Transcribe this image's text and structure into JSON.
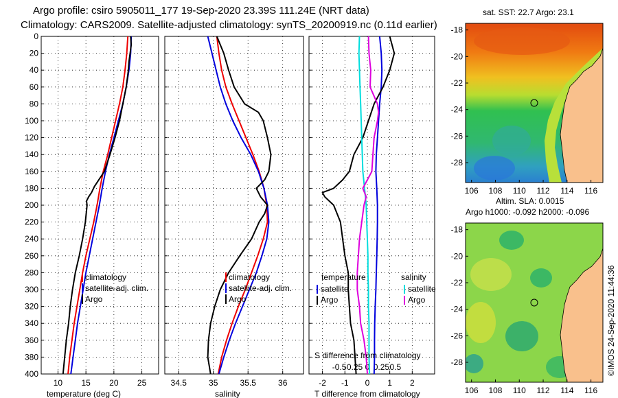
{
  "header": {
    "title_line1": "Argo profile: csiro 5905011_177 19-Sep-2020 23.39S 111.24E (NRT data)",
    "title_line2": "Climatology: CARS2009. Satellite-adjusted climatology: synTS_20200919.nc (0.11d earlier)"
  },
  "maps_text": {
    "sst_title": "sat. SST: 22.7 Argo: 23.1",
    "sla_title": "Altim. SLA: 0.0015",
    "h_title": "Argo h1000: -0.092 h2000: -0.096",
    "credit": "©IMOS 24-Sep-2020 11:44:36"
  },
  "legend": {
    "climatology": "climatology",
    "satellite_adj": "satellite-adj. clim.",
    "argo": "Argo",
    "temperature": "temperature",
    "salinity": "salinity",
    "satellite": "satellite"
  },
  "colors": {
    "climatology": "#ee0000",
    "satellite_adj": "#0000dd",
    "argo": "#000000",
    "diff_salinity": "#dd00dd",
    "diff_temperature_sat": "#00dddd",
    "land": "#f9c08c"
  },
  "chart_data": [
    {
      "type": "line",
      "title": "",
      "xlabel": "temperature (deg C)",
      "ylabel": "",
      "xlim": [
        7,
        28
      ],
      "ylim": [
        400,
        0
      ],
      "xticks": [
        10,
        15,
        20,
        25
      ],
      "yticks": [
        0,
        20,
        40,
        60,
        80,
        100,
        120,
        140,
        160,
        180,
        200,
        220,
        240,
        260,
        280,
        300,
        320,
        340,
        360,
        380,
        400
      ],
      "grid": true,
      "legend_position": "lower-right",
      "series": [
        {
          "name": "climatology",
          "depth": [
            0,
            20,
            40,
            60,
            80,
            100,
            120,
            140,
            160,
            180,
            200,
            220,
            240,
            260,
            280,
            300,
            320,
            340,
            360,
            380,
            400
          ],
          "values": [
            22.5,
            22.3,
            22.0,
            21.6,
            21.0,
            20.3,
            19.6,
            18.9,
            18.1,
            17.5,
            17.0,
            16.4,
            15.7,
            15.0,
            14.4,
            13.9,
            13.4,
            12.9,
            12.5,
            12.1,
            11.8
          ]
        },
        {
          "name": "satellite-adj. clim.",
          "depth": [
            0,
            20,
            40,
            60,
            80,
            100,
            120,
            140,
            160,
            180,
            200,
            220,
            240,
            260,
            280,
            300,
            320,
            340,
            360,
            380,
            400
          ],
          "values": [
            23.1,
            23.0,
            22.7,
            22.2,
            21.6,
            20.8,
            20.0,
            19.2,
            18.5,
            17.9,
            17.4,
            16.8,
            16.2,
            15.6,
            15.0,
            14.5,
            14.0,
            13.5,
            13.1,
            12.7,
            12.3
          ]
        },
        {
          "name": "Argo",
          "depth": [
            0,
            10,
            20,
            30,
            40,
            60,
            80,
            100,
            120,
            140,
            160,
            170,
            178,
            185,
            190,
            195,
            200,
            220,
            240,
            260,
            280,
            300,
            320,
            340,
            360,
            380,
            400
          ],
          "values": [
            23.0,
            23.1,
            22.9,
            22.7,
            22.6,
            22.2,
            21.6,
            21.0,
            20.2,
            19.3,
            18.3,
            17.3,
            16.5,
            16.0,
            15.5,
            15.1,
            15.2,
            14.9,
            14.4,
            13.8,
            13.1,
            12.6,
            12.2,
            11.9,
            11.5,
            11.2,
            10.9
          ]
        }
      ]
    },
    {
      "type": "line",
      "title": "",
      "xlabel": "salinity",
      "ylabel": "",
      "xlim": [
        34.3,
        36.3
      ],
      "ylim": [
        400,
        0
      ],
      "xticks": [
        34.5,
        35,
        35.5,
        36
      ],
      "xtick_labels": [
        "34.5",
        "35",
        "35.5",
        "36"
      ],
      "grid": true,
      "legend_position": "lower-right",
      "series": [
        {
          "name": "climatology",
          "depth": [
            0,
            20,
            40,
            60,
            80,
            100,
            120,
            140,
            160,
            180,
            200,
            220,
            240,
            260,
            280,
            300,
            320,
            340,
            360,
            380,
            400
          ],
          "values": [
            35.05,
            35.08,
            35.12,
            35.18,
            35.27,
            35.37,
            35.47,
            35.57,
            35.66,
            35.73,
            35.77,
            35.78,
            35.72,
            35.64,
            35.55,
            35.46,
            35.36,
            35.27,
            35.19,
            35.12,
            35.07
          ]
        },
        {
          "name": "satellite-adj. clim.",
          "depth": [
            0,
            20,
            40,
            60,
            80,
            100,
            120,
            140,
            160,
            180,
            200,
            220,
            240,
            260,
            280,
            300,
            320,
            340,
            360,
            380,
            400
          ],
          "values": [
            34.92,
            34.98,
            35.04,
            35.1,
            35.18,
            35.28,
            35.4,
            35.54,
            35.65,
            35.73,
            35.78,
            35.8,
            35.77,
            35.7,
            35.62,
            35.52,
            35.42,
            35.32,
            35.23,
            35.15,
            35.08
          ]
        },
        {
          "name": "Argo",
          "depth": [
            0,
            10,
            20,
            40,
            60,
            80,
            90,
            100,
            120,
            140,
            160,
            170,
            180,
            190,
            200,
            210,
            220,
            240,
            260,
            280,
            300,
            320,
            340,
            360,
            380,
            400
          ],
          "values": [
            35.05,
            35.1,
            35.15,
            35.22,
            35.3,
            35.45,
            35.65,
            35.72,
            35.78,
            35.83,
            35.8,
            35.74,
            35.62,
            35.68,
            35.78,
            35.74,
            35.66,
            35.55,
            35.38,
            35.22,
            35.1,
            35.02,
            34.96,
            34.93,
            34.92,
            34.96
          ]
        }
      ]
    },
    {
      "type": "line",
      "title": "",
      "xlabel": "T difference from climatology",
      "xlabel_top": "S difference from climatology",
      "ylabel": "",
      "xlim": [
        -2.6,
        3.0
      ],
      "ylim": [
        400,
        0
      ],
      "xticks": [
        -2,
        -1,
        0,
        1,
        2
      ],
      "xtick_labels": [
        "-2",
        "-1",
        "0",
        "1",
        "2"
      ],
      "s_ticks": [
        -0.5,
        -0.25,
        0,
        0.25,
        0.5
      ],
      "s_tick_labels": [
        "-0.5",
        "-0.25",
        "0",
        "0.25",
        "0.5"
      ],
      "s_scale": 2.5,
      "grid": true,
      "legend_position": "lower-center",
      "series": [
        {
          "name": "temperature satellite",
          "quantity": "T",
          "depth": [
            0,
            20,
            40,
            60,
            80,
            100,
            120,
            140,
            160,
            180,
            200,
            220,
            240,
            260,
            280,
            300,
            320,
            340,
            360,
            380,
            400
          ],
          "values": [
            0.55,
            0.62,
            0.65,
            0.62,
            0.55,
            0.5,
            0.45,
            0.4,
            0.38,
            0.42,
            0.45,
            0.45,
            0.44,
            0.42,
            0.4,
            0.38,
            0.35,
            0.33,
            0.32,
            0.32,
            0.3
          ]
        },
        {
          "name": "temperature Argo",
          "quantity": "T",
          "depth": [
            0,
            20,
            40,
            60,
            80,
            100,
            120,
            140,
            160,
            170,
            180,
            185,
            190,
            195,
            200,
            220,
            240,
            260,
            280,
            300,
            320,
            340,
            360,
            380,
            400
          ],
          "values": [
            1.0,
            1.2,
            1.0,
            0.7,
            0.3,
            0.05,
            -0.2,
            -0.6,
            -0.8,
            -1.1,
            -1.5,
            -2.0,
            -1.9,
            -1.7,
            -1.5,
            -1.2,
            -1.1,
            -1.0,
            -0.85,
            -0.85,
            -0.8,
            -0.75,
            -0.6,
            -0.55,
            -0.5
          ]
        },
        {
          "name": "salinity satellite",
          "quantity": "S",
          "depth": [
            0,
            20,
            40,
            60,
            80,
            100,
            120,
            140,
            160,
            180,
            200,
            220,
            240,
            260,
            280,
            300,
            320,
            340,
            360,
            380,
            400
          ],
          "values": [
            -0.14,
            -0.15,
            -0.14,
            -0.13,
            -0.12,
            -0.11,
            -0.1,
            -0.09,
            -0.08,
            -0.05,
            -0.02,
            -0.01,
            0.0,
            0.01,
            0.01,
            0.02,
            0.02,
            0.03,
            0.03,
            0.03,
            0.04
          ]
        },
        {
          "name": "salinity Argo",
          "quantity": "S",
          "depth": [
            0,
            20,
            40,
            60,
            80,
            90,
            100,
            120,
            140,
            160,
            170,
            180,
            190,
            200,
            220,
            240,
            260,
            280,
            300,
            320,
            340,
            360,
            380,
            400
          ],
          "values": [
            0.02,
            0.03,
            0.06,
            0.05,
            0.18,
            0.2,
            0.18,
            0.12,
            0.1,
            0.08,
            0.0,
            -0.08,
            -0.02,
            -0.06,
            -0.1,
            -0.14,
            -0.16,
            -0.18,
            -0.18,
            -0.14,
            -0.12,
            -0.06,
            -0.02,
            0.0
          ]
        }
      ]
    },
    {
      "type": "heatmap",
      "title": "sat. SST: 22.7 Argo: 23.1",
      "xlim": [
        105.5,
        117
      ],
      "ylim": [
        -29.5,
        -17.5
      ],
      "xticks": [
        106,
        108,
        110,
        112,
        114,
        116
      ],
      "yticks": [
        -18,
        -20,
        -22,
        -24,
        -26,
        -28
      ],
      "marker": {
        "lon": 111.24,
        "lat": -23.39
      }
    },
    {
      "type": "heatmap",
      "title": "Argo h1000: -0.092 h2000: -0.096",
      "xlim": [
        105.5,
        117
      ],
      "ylim": [
        -29.5,
        -17.5
      ],
      "xticks": [
        106,
        108,
        110,
        112,
        114,
        116
      ],
      "yticks": [
        -18,
        -20,
        -22,
        -24,
        -26,
        -28
      ],
      "marker": {
        "lon": 111.24,
        "lat": -23.39
      }
    }
  ]
}
